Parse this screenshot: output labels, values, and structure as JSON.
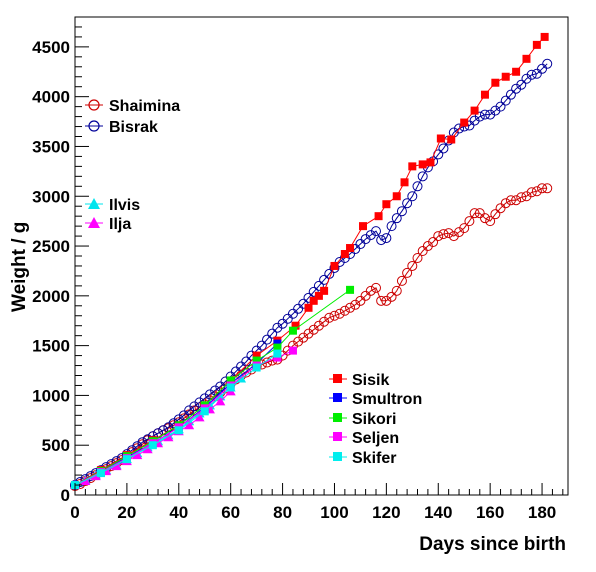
{
  "chart_data": {
    "type": "scatter",
    "title": "",
    "xlabel": "Days since birth",
    "ylabel": "Weight / g",
    "xlim": [
      0,
      190
    ],
    "ylim": [
      0,
      4800
    ],
    "x_ticks": [
      0,
      20,
      40,
      60,
      80,
      100,
      120,
      140,
      160,
      180
    ],
    "y_ticks": [
      0,
      500,
      1000,
      1500,
      2000,
      2500,
      3000,
      3500,
      4000,
      4500
    ],
    "grid": false,
    "legend_groups": [
      {
        "placement": "top-left",
        "entries": [
          "Shaimina",
          "Bisrak"
        ]
      },
      {
        "placement": "upper-left",
        "entries": [
          "Ilvis",
          "Ilja"
        ]
      },
      {
        "placement": "bottom-right",
        "entries": [
          "Sisik",
          "Smultron",
          "Sikori",
          "Seljen",
          "Skifer"
        ]
      }
    ],
    "series": [
      {
        "name": "Shaimina",
        "color": "#cc0000",
        "marker": "open-circle",
        "line": true,
        "x": [
          0,
          2,
          4,
          6,
          8,
          10,
          12,
          14,
          16,
          18,
          20,
          22,
          24,
          26,
          28,
          30,
          32,
          34,
          36,
          38,
          40,
          42,
          44,
          46,
          48,
          50,
          52,
          54,
          56,
          58,
          60,
          62,
          64,
          66,
          68,
          70,
          72,
          74,
          76,
          78,
          80,
          82,
          84,
          86,
          88,
          90,
          92,
          94,
          96,
          98,
          100,
          102,
          104,
          106,
          108,
          110,
          112,
          114,
          116,
          118,
          120,
          122,
          124,
          126,
          128,
          130,
          132,
          134,
          136,
          138,
          140,
          142,
          144,
          146,
          148,
          150,
          152,
          154,
          156,
          158,
          160,
          162,
          164,
          166,
          168,
          170,
          172,
          174,
          176,
          178,
          180,
          182
        ],
        "y": [
          90,
          110,
          140,
          170,
          200,
          230,
          260,
          290,
          320,
          350,
          390,
          430,
          470,
          510,
          550,
          590,
          620,
          650,
          670,
          700,
          730,
          770,
          810,
          850,
          880,
          910,
          950,
          990,
          1030,
          1070,
          1120,
          1160,
          1200,
          1230,
          1260,
          1290,
          1310,
          1330,
          1350,
          1360,
          1400,
          1450,
          1500,
          1540,
          1580,
          1620,
          1660,
          1700,
          1740,
          1780,
          1800,
          1820,
          1850,
          1880,
          1910,
          1950,
          2000,
          2050,
          2080,
          1950,
          1950,
          1990,
          2050,
          2150,
          2230,
          2300,
          2380,
          2450,
          2500,
          2540,
          2600,
          2620,
          2630,
          2600,
          2640,
          2680,
          2750,
          2830,
          2830,
          2780,
          2750,
          2820,
          2880,
          2930,
          2960,
          2960,
          2990,
          3000,
          3040,
          3050,
          3080,
          3080
        ]
      },
      {
        "name": "Bisrak",
        "color": "#000099",
        "marker": "open-circle",
        "line": true,
        "x": [
          0,
          2,
          4,
          6,
          8,
          10,
          12,
          14,
          16,
          18,
          20,
          22,
          24,
          26,
          28,
          30,
          32,
          34,
          36,
          38,
          40,
          42,
          44,
          46,
          48,
          50,
          52,
          54,
          56,
          58,
          60,
          62,
          64,
          66,
          68,
          70,
          72,
          74,
          76,
          78,
          80,
          82,
          84,
          86,
          88,
          90,
          92,
          94,
          96,
          98,
          100,
          102,
          104,
          106,
          108,
          110,
          112,
          114,
          116,
          118,
          120,
          122,
          124,
          126,
          128,
          130,
          132,
          134,
          136,
          138,
          140,
          142,
          144,
          146,
          148,
          150,
          152,
          154,
          156,
          158,
          160,
          162,
          164,
          166,
          168,
          170,
          172,
          174,
          176,
          178,
          180,
          182
        ],
        "y": [
          100,
          130,
          160,
          190,
          220,
          250,
          280,
          310,
          340,
          370,
          410,
          450,
          490,
          530,
          560,
          590,
          620,
          650,
          680,
          720,
          760,
          800,
          850,
          890,
          930,
          970,
          1010,
          1050,
          1090,
          1140,
          1190,
          1240,
          1290,
          1340,
          1400,
          1450,
          1500,
          1560,
          1620,
          1680,
          1720,
          1770,
          1820,
          1870,
          1920,
          1980,
          2040,
          2100,
          2160,
          2220,
          2280,
          2340,
          2380,
          2420,
          2470,
          2520,
          2570,
          2610,
          2650,
          2560,
          2580,
          2700,
          2780,
          2850,
          2930,
          3000,
          3100,
          3200,
          3290,
          3350,
          3420,
          3480,
          3560,
          3640,
          3680,
          3700,
          3710,
          3760,
          3800,
          3820,
          3820,
          3860,
          3900,
          3960,
          4020,
          4080,
          4120,
          4180,
          4220,
          4230,
          4280,
          4330
        ]
      },
      {
        "name": "Ilvis",
        "color": "#00e5ee",
        "marker": "filled-triangle",
        "line": true,
        "x": [
          0,
          4,
          8,
          12,
          16,
          20,
          24,
          28,
          32,
          36,
          40,
          44,
          48,
          52,
          56,
          60,
          64
        ],
        "y": [
          100,
          150,
          200,
          250,
          300,
          360,
          420,
          480,
          540,
          600,
          660,
          740,
          820,
          900,
          990,
          1080,
          1170
        ]
      },
      {
        "name": "Ilja",
        "color": "#ff00ff",
        "marker": "filled-triangle",
        "line": true,
        "x": [
          0,
          4,
          8,
          12,
          16,
          20,
          24,
          28,
          32,
          36,
          40,
          44,
          48,
          52,
          56,
          60
        ],
        "y": [
          100,
          140,
          190,
          240,
          290,
          340,
          400,
          460,
          520,
          580,
          640,
          700,
          780,
          860,
          940,
          1040
        ]
      },
      {
        "name": "Sisik",
        "color": "#ff0000",
        "marker": "filled-square",
        "line": true,
        "x": [
          0,
          10,
          20,
          30,
          40,
          50,
          60,
          70,
          78,
          85,
          90,
          92,
          94,
          96,
          100,
          104,
          106,
          111,
          117,
          120,
          124,
          127,
          130,
          134,
          137,
          141,
          145,
          150,
          154,
          158,
          162,
          166,
          170,
          174,
          178,
          181
        ],
        "y": [
          100,
          250,
          400,
          550,
          700,
          900,
          1150,
          1400,
          1550,
          1700,
          1880,
          1950,
          2000,
          2050,
          2300,
          2420,
          2480,
          2700,
          2800,
          2920,
          3000,
          3140,
          3300,
          3320,
          3340,
          3580,
          3570,
          3740,
          3860,
          4020,
          4140,
          4200,
          4250,
          4380,
          4520,
          4600
        ]
      },
      {
        "name": "Smultron",
        "color": "#0000ff",
        "marker": "filled-square",
        "line": true,
        "x": [
          0,
          10,
          20,
          30,
          40,
          50,
          60,
          70,
          78
        ],
        "y": [
          100,
          230,
          380,
          520,
          680,
          880,
          1120,
          1320,
          1520
        ]
      },
      {
        "name": "Sikori",
        "color": "#00ee00",
        "marker": "filled-square",
        "line": true,
        "x": [
          0,
          10,
          20,
          30,
          40,
          50,
          60,
          70,
          78,
          84,
          106
        ],
        "y": [
          100,
          240,
          390,
          540,
          700,
          900,
          1150,
          1350,
          1480,
          1650,
          2060
        ]
      },
      {
        "name": "Seljen",
        "color": "#ff00ff",
        "marker": "filled-square",
        "line": true,
        "x": [
          0,
          10,
          20,
          30,
          40,
          50,
          60,
          70,
          78,
          84
        ],
        "y": [
          100,
          230,
          370,
          520,
          680,
          870,
          1100,
          1300,
          1380,
          1450
        ]
      },
      {
        "name": "Skifer",
        "color": "#00eeee",
        "marker": "filled-square",
        "line": true,
        "x": [
          0,
          10,
          20,
          30,
          40,
          50,
          60,
          70,
          78
        ],
        "y": [
          100,
          220,
          360,
          500,
          650,
          840,
          1080,
          1280,
          1420
        ]
      }
    ]
  }
}
